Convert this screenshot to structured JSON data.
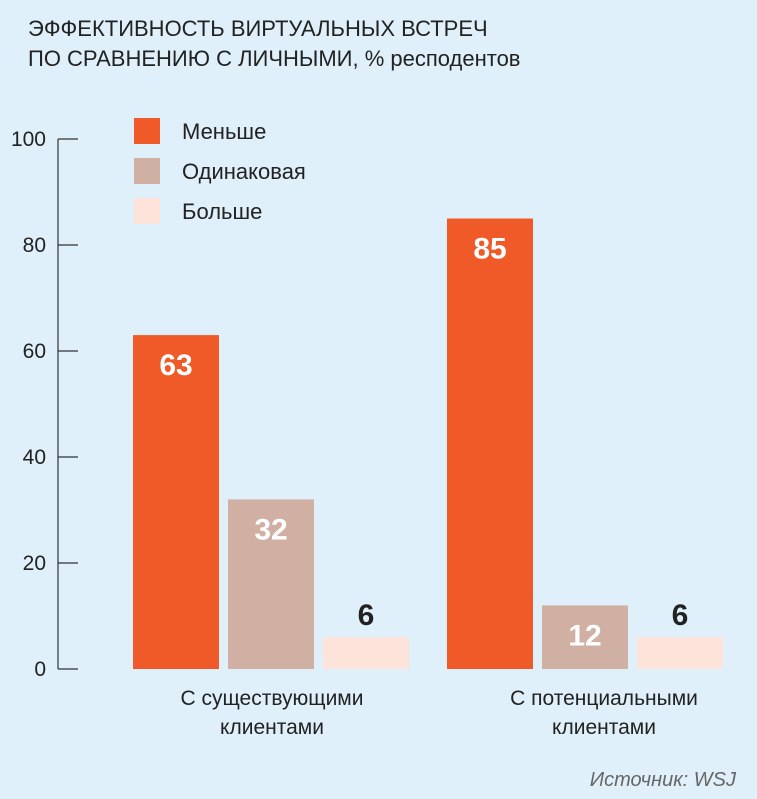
{
  "chart_data": {
    "type": "bar",
    "title_lines": [
      "ЭФФЕКТИВНОСТЬ ВИРТУАЛЬНЫХ ВСТРЕЧ",
      "ПО СРАВНЕНИЮ С ЛИЧНЫМИ, % респодентов"
    ],
    "categories": [
      {
        "lines": [
          "С существующими",
          "клиентами"
        ]
      },
      {
        "lines": [
          "С потенциальными",
          "клиентами"
        ]
      }
    ],
    "series": [
      {
        "name": "Меньше",
        "color": "#f05a28",
        "label_color": "#ffffff",
        "values": [
          63,
          85
        ]
      },
      {
        "name": "Одинаковая",
        "color": "#d0b0a3",
        "label_color": "#ffffff",
        "values": [
          32,
          12
        ]
      },
      {
        "name": "Больше",
        "color": "#fde3da",
        "label_color": "#222222",
        "values": [
          6,
          6
        ]
      }
    ],
    "yticks": [
      0,
      20,
      40,
      60,
      80,
      100
    ],
    "ylim": [
      0,
      100
    ],
    "source": "Источник: WSJ"
  }
}
